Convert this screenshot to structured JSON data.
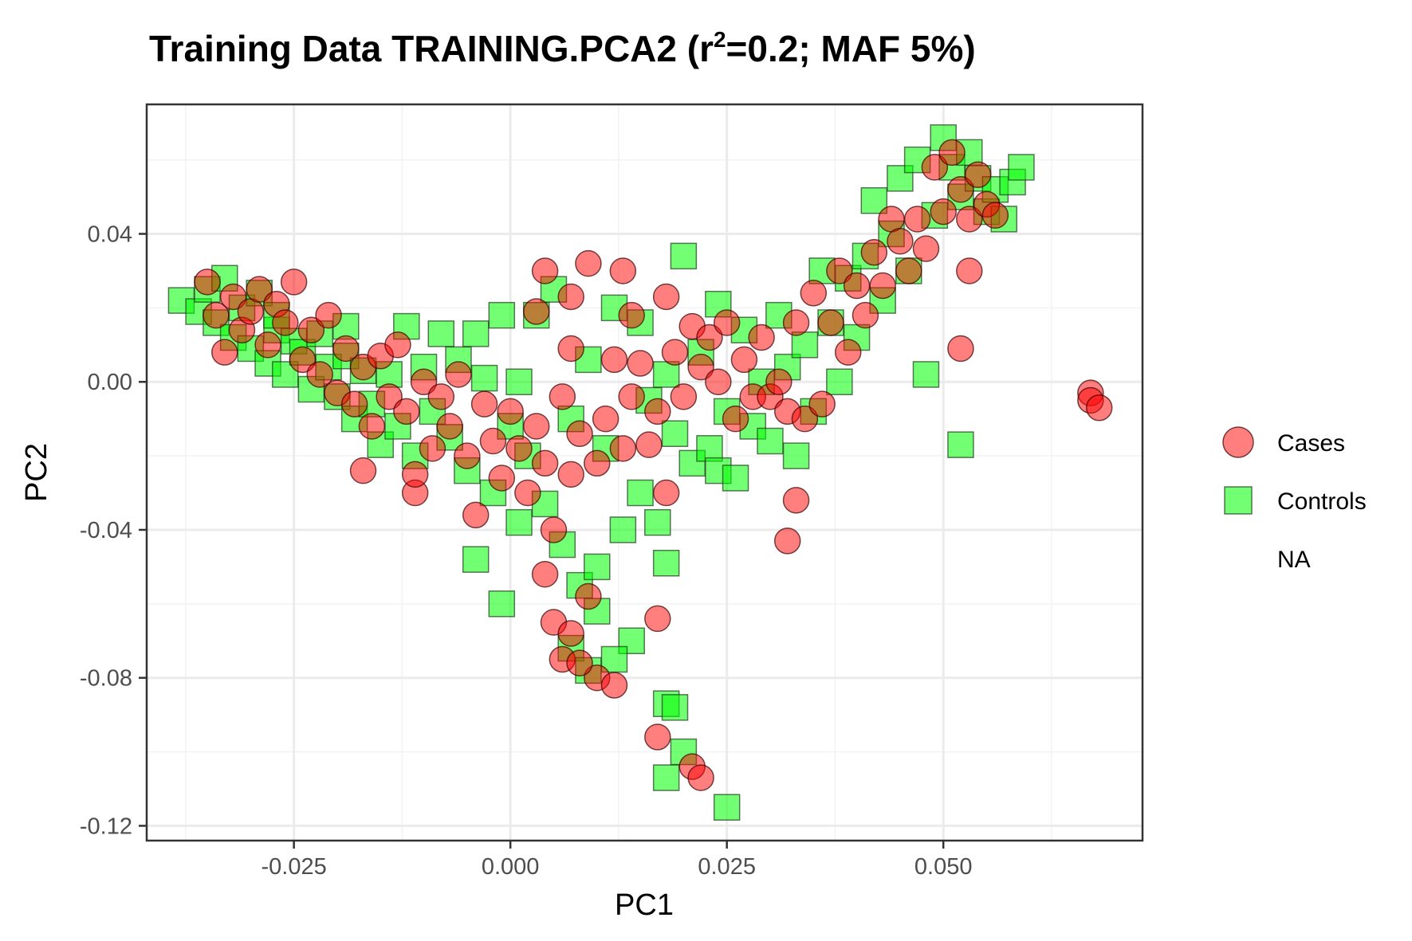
{
  "chart_data": {
    "type": "scatter",
    "title": {
      "prefix": "Training Data TRAINING.PCA2 (r",
      "superscript": "2",
      "suffix": "=0.2; MAF 5%)"
    },
    "xlabel": "PC1",
    "ylabel": "PC2",
    "xlim": [
      -0.042,
      0.073
    ],
    "ylim": [
      -0.124,
      0.075
    ],
    "x_ticks": [
      {
        "value": -0.025,
        "label": "-0.025"
      },
      {
        "value": 0.0,
        "label": "0.000"
      },
      {
        "value": 0.025,
        "label": "0.025"
      },
      {
        "value": 0.05,
        "label": "0.050"
      }
    ],
    "y_ticks": [
      {
        "value": 0.04,
        "label": "0.04"
      },
      {
        "value": 0.0,
        "label": "0.00"
      },
      {
        "value": -0.04,
        "label": "-0.04"
      },
      {
        "value": -0.08,
        "label": "-0.08"
      },
      {
        "value": -0.12,
        "label": "-0.12"
      }
    ],
    "grid": true,
    "legend": {
      "position": "right",
      "items": [
        {
          "label": "Cases",
          "shape": "circle",
          "color": "#ff0000"
        },
        {
          "label": "Controls",
          "shape": "square",
          "color": "#00ff00"
        },
        {
          "label": "NA",
          "shape": "none",
          "color": ""
        }
      ]
    },
    "series": [
      {
        "name": "Controls",
        "shape": "square",
        "color": "#00ff00",
        "points": [
          [
            -0.038,
            0.022
          ],
          [
            -0.036,
            0.019
          ],
          [
            -0.035,
            0.025
          ],
          [
            -0.034,
            0.016
          ],
          [
            -0.033,
            0.028
          ],
          [
            -0.032,
            0.012
          ],
          [
            -0.031,
            0.02
          ],
          [
            -0.03,
            0.009
          ],
          [
            -0.029,
            0.024
          ],
          [
            -0.028,
            0.005
          ],
          [
            -0.027,
            0.014
          ],
          [
            -0.026,
            0.002
          ],
          [
            -0.025,
            0.011
          ],
          [
            -0.024,
            0.008
          ],
          [
            -0.023,
            -0.002
          ],
          [
            -0.022,
            0.013
          ],
          [
            -0.021,
            0.004
          ],
          [
            -0.02,
            -0.004
          ],
          [
            -0.019,
            0.007
          ],
          [
            -0.018,
            -0.01
          ],
          [
            -0.017,
            0.003
          ],
          [
            -0.016,
            -0.006
          ],
          [
            -0.015,
            -0.017
          ],
          [
            -0.014,
            0.002
          ],
          [
            -0.013,
            -0.012
          ],
          [
            -0.012,
            0.015
          ],
          [
            -0.011,
            -0.02
          ],
          [
            -0.01,
            0.004
          ],
          [
            -0.009,
            -0.008
          ],
          [
            -0.008,
            0.013
          ],
          [
            -0.007,
            -0.015
          ],
          [
            -0.006,
            0.006
          ],
          [
            -0.005,
            -0.024
          ],
          [
            -0.004,
            0.013
          ],
          [
            -0.003,
            0.001
          ],
          [
            -0.002,
            -0.03
          ],
          [
            -0.001,
            0.018
          ],
          [
            0.0,
            -0.012
          ],
          [
            0.001,
            -0.038
          ],
          [
            0.002,
            -0.02
          ],
          [
            0.003,
            0.018
          ],
          [
            0.004,
            -0.033
          ],
          [
            0.005,
            0.025
          ],
          [
            0.006,
            -0.044
          ],
          [
            0.007,
            -0.01
          ],
          [
            0.008,
            -0.055
          ],
          [
            0.009,
            0.006
          ],
          [
            0.01,
            -0.062
          ],
          [
            0.011,
            -0.018
          ],
          [
            0.012,
            0.02
          ],
          [
            0.013,
            -0.04
          ],
          [
            0.014,
            -0.07
          ],
          [
            0.015,
            -0.03
          ],
          [
            0.016,
            -0.005
          ],
          [
            0.017,
            -0.038
          ],
          [
            0.018,
            0.002
          ],
          [
            0.019,
            -0.014
          ],
          [
            0.02,
            0.034
          ],
          [
            0.021,
            -0.022
          ],
          [
            0.022,
            0.008
          ],
          [
            0.023,
            -0.018
          ],
          [
            0.024,
            -0.024
          ],
          [
            0.025,
            -0.008
          ],
          [
            0.026,
            -0.026
          ],
          [
            0.027,
            0.014
          ],
          [
            0.028,
            -0.012
          ],
          [
            0.029,
            0.0
          ],
          [
            0.03,
            -0.016
          ],
          [
            0.031,
            0.018
          ],
          [
            0.032,
            0.004
          ],
          [
            0.033,
            -0.02
          ],
          [
            0.034,
            0.01
          ],
          [
            0.035,
            -0.008
          ],
          [
            0.036,
            0.03
          ],
          [
            0.037,
            0.016
          ],
          [
            0.038,
            0.0
          ],
          [
            0.039,
            0.028
          ],
          [
            0.04,
            0.012
          ],
          [
            0.041,
            0.034
          ],
          [
            0.042,
            0.049
          ],
          [
            0.043,
            0.022
          ],
          [
            0.044,
            0.04
          ],
          [
            0.045,
            0.055
          ],
          [
            0.046,
            0.03
          ],
          [
            0.047,
            0.06
          ],
          [
            0.048,
            0.002
          ],
          [
            0.049,
            0.045
          ],
          [
            0.05,
            0.066
          ],
          [
            0.051,
            0.058
          ],
          [
            0.052,
            0.05
          ],
          [
            0.053,
            0.062
          ],
          [
            0.054,
            0.055
          ],
          [
            0.055,
            0.046
          ],
          [
            0.056,
            0.052
          ],
          [
            0.057,
            0.044
          ],
          [
            0.058,
            0.054
          ],
          [
            0.059,
            0.058
          ],
          [
            0.052,
            -0.017
          ],
          [
            -0.004,
            -0.048
          ],
          [
            -0.001,
            -0.06
          ],
          [
            0.007,
            -0.072
          ],
          [
            0.009,
            -0.078
          ],
          [
            0.012,
            -0.075
          ],
          [
            0.018,
            -0.087
          ],
          [
            0.019,
            -0.088
          ],
          [
            0.018,
            -0.107
          ],
          [
            0.02,
            -0.1
          ],
          [
            0.025,
            -0.115
          ],
          [
            0.018,
            -0.049
          ],
          [
            0.01,
            -0.05
          ],
          [
            0.024,
            0.021
          ],
          [
            0.015,
            0.016
          ],
          [
            0.001,
            0.0
          ],
          [
            -0.019,
            0.015
          ],
          [
            -0.027,
            0.018
          ]
        ]
      },
      {
        "name": "Cases",
        "shape": "circle",
        "color": "#ff0000",
        "points": [
          [
            -0.035,
            0.027
          ],
          [
            -0.034,
            0.018
          ],
          [
            -0.033,
            0.008
          ],
          [
            -0.032,
            0.023
          ],
          [
            -0.031,
            0.014
          ],
          [
            -0.03,
            0.019
          ],
          [
            -0.029,
            0.025
          ],
          [
            -0.028,
            0.01
          ],
          [
            -0.027,
            0.021
          ],
          [
            -0.026,
            0.016
          ],
          [
            -0.025,
            0.027
          ],
          [
            -0.024,
            0.006
          ],
          [
            -0.023,
            0.014
          ],
          [
            -0.022,
            0.002
          ],
          [
            -0.021,
            0.018
          ],
          [
            -0.02,
            -0.003
          ],
          [
            -0.019,
            0.009
          ],
          [
            -0.018,
            -0.006
          ],
          [
            -0.017,
            0.004
          ],
          [
            -0.016,
            -0.012
          ],
          [
            -0.015,
            0.007
          ],
          [
            -0.014,
            -0.004
          ],
          [
            -0.013,
            0.01
          ],
          [
            -0.012,
            -0.008
          ],
          [
            -0.011,
            -0.03
          ],
          [
            -0.01,
            0.0
          ],
          [
            -0.009,
            -0.018
          ],
          [
            -0.008,
            -0.004
          ],
          [
            -0.007,
            -0.012
          ],
          [
            -0.006,
            0.002
          ],
          [
            -0.005,
            -0.02
          ],
          [
            -0.004,
            -0.036
          ],
          [
            -0.003,
            -0.006
          ],
          [
            -0.002,
            -0.016
          ],
          [
            -0.001,
            -0.026
          ],
          [
            0.0,
            -0.008
          ],
          [
            0.001,
            -0.018
          ],
          [
            0.002,
            -0.03
          ],
          [
            0.003,
            -0.012
          ],
          [
            0.004,
            -0.022
          ],
          [
            0.005,
            -0.04
          ],
          [
            0.006,
            -0.004
          ],
          [
            0.007,
            -0.025
          ],
          [
            0.008,
            -0.014
          ],
          [
            0.009,
            0.032
          ],
          [
            0.01,
            -0.022
          ],
          [
            0.011,
            -0.01
          ],
          [
            0.012,
            0.006
          ],
          [
            0.013,
            -0.018
          ],
          [
            0.014,
            -0.004
          ],
          [
            0.015,
            0.005
          ],
          [
            0.016,
            -0.017
          ],
          [
            0.017,
            -0.008
          ],
          [
            0.018,
            -0.03
          ],
          [
            0.019,
            0.008
          ],
          [
            0.02,
            -0.004
          ],
          [
            0.021,
            0.015
          ],
          [
            0.022,
            0.004
          ],
          [
            0.023,
            0.012
          ],
          [
            0.024,
            0.0
          ],
          [
            0.025,
            0.016
          ],
          [
            0.026,
            -0.01
          ],
          [
            0.027,
            0.006
          ],
          [
            0.028,
            -0.004
          ],
          [
            0.029,
            0.012
          ],
          [
            0.03,
            -0.004
          ],
          [
            0.031,
            0.0
          ],
          [
            0.032,
            -0.008
          ],
          [
            0.033,
            0.016
          ],
          [
            0.034,
            -0.01
          ],
          [
            0.035,
            0.024
          ],
          [
            0.036,
            -0.006
          ],
          [
            0.037,
            0.016
          ],
          [
            0.038,
            0.03
          ],
          [
            0.039,
            0.008
          ],
          [
            0.04,
            0.026
          ],
          [
            0.041,
            0.018
          ],
          [
            0.042,
            0.035
          ],
          [
            0.043,
            0.026
          ],
          [
            0.044,
            0.044
          ],
          [
            0.045,
            0.038
          ],
          [
            0.046,
            0.03
          ],
          [
            0.047,
            0.044
          ],
          [
            0.048,
            0.036
          ],
          [
            0.049,
            0.058
          ],
          [
            0.05,
            0.046
          ],
          [
            0.051,
            0.062
          ],
          [
            0.052,
            0.052
          ],
          [
            0.053,
            0.044
          ],
          [
            0.054,
            0.056
          ],
          [
            0.055,
            0.048
          ],
          [
            0.056,
            0.045
          ],
          [
            0.053,
            0.03
          ],
          [
            0.052,
            0.009
          ],
          [
            0.067,
            -0.003
          ],
          [
            0.067,
            -0.005
          ],
          [
            0.068,
            -0.007
          ],
          [
            0.033,
            -0.032
          ],
          [
            0.032,
            -0.043
          ],
          [
            0.004,
            -0.052
          ],
          [
            0.005,
            -0.065
          ],
          [
            0.007,
            -0.068
          ],
          [
            0.006,
            -0.075
          ],
          [
            0.009,
            -0.058
          ],
          [
            0.01,
            -0.08
          ],
          [
            0.008,
            -0.076
          ],
          [
            0.012,
            -0.082
          ],
          [
            0.017,
            -0.064
          ],
          [
            0.017,
            -0.096
          ],
          [
            0.021,
            -0.104
          ],
          [
            0.022,
            -0.107
          ],
          [
            -0.017,
            -0.024
          ],
          [
            -0.011,
            -0.025
          ],
          [
            0.004,
            0.03
          ],
          [
            0.007,
            0.023
          ],
          [
            0.013,
            0.03
          ],
          [
            0.003,
            0.019
          ],
          [
            0.007,
            0.009
          ],
          [
            0.014,
            0.018
          ],
          [
            0.018,
            0.023
          ]
        ]
      }
    ]
  }
}
